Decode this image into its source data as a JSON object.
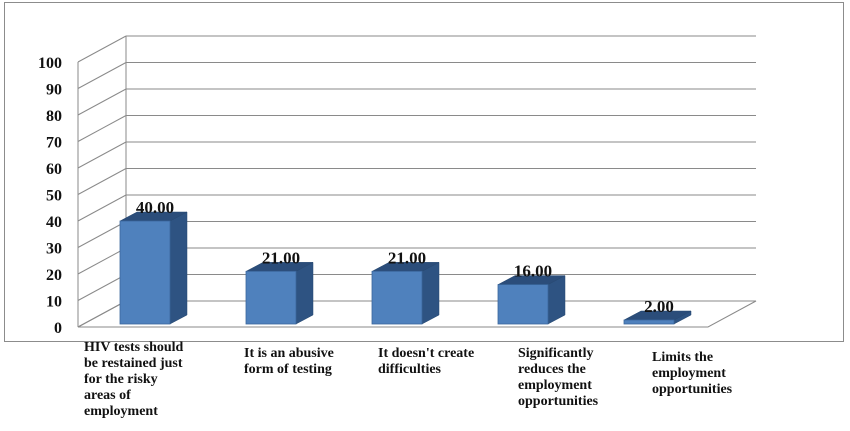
{
  "chart_data": {
    "type": "bar",
    "title": "",
    "xlabel": "",
    "ylabel": "",
    "ylim": [
      0,
      100
    ],
    "yticks": [
      "0",
      "10",
      "20",
      "30",
      "40",
      "50",
      "60",
      "70",
      "80",
      "90",
      "100"
    ],
    "grid": true,
    "style": "3d",
    "bar_color": "#4f81bd",
    "categories": [
      "HIV tests should\nbe restained just\nfor the risky\nareas of\nemployment",
      "It is an abusive\nform of testing",
      "It doesn't create\ndifficulties",
      "Significantly\nreduces the\nemployment\nopportunities",
      "Limits the\nemployment\nopportunities"
    ],
    "values": [
      40,
      21,
      21,
      16,
      2
    ],
    "data_labels": [
      "40.00",
      "21.00",
      "21.00",
      "16.00",
      "2.00"
    ]
  }
}
